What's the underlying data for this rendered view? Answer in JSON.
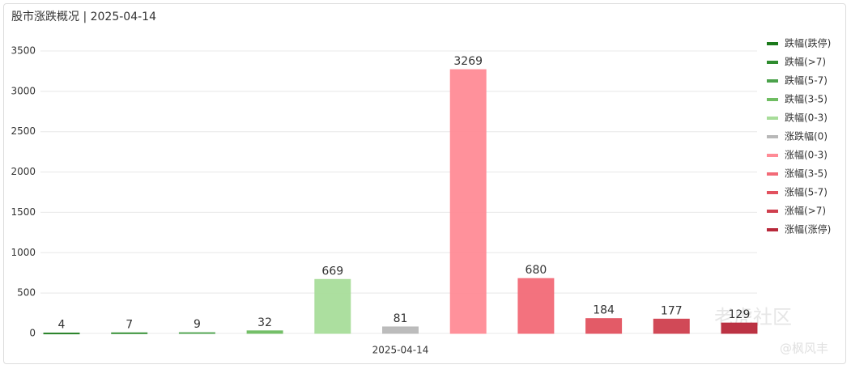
{
  "chart_data": {
    "type": "bar",
    "title": "股市涨跌概况 | 2025-04-14",
    "categories": [
      "2025-04-14"
    ],
    "series": [
      {
        "name": "跌幅(跌停)",
        "color": "#1b7a1b",
        "values": [
          4
        ]
      },
      {
        "name": "跌幅(>7)",
        "color": "#2f8c2f",
        "values": [
          7
        ]
      },
      {
        "name": "跌幅(5-7)",
        "color": "#4ba24b",
        "values": [
          9
        ]
      },
      {
        "name": "跌幅(3-5)",
        "color": "#6fbd62",
        "values": [
          32
        ]
      },
      {
        "name": "跌幅(0-3)",
        "color": "#a8dd9a",
        "values": [
          669
        ]
      },
      {
        "name": "涨跌幅(0)",
        "color": "#b8b8b8",
        "values": [
          81
        ]
      },
      {
        "name": "涨幅(0-3)",
        "color": "#ff8b96",
        "values": [
          3269
        ]
      },
      {
        "name": "涨幅(3-5)",
        "color": "#f26a77",
        "values": [
          680
        ]
      },
      {
        "name": "涨幅(5-7)",
        "color": "#e2525f",
        "values": [
          184
        ]
      },
      {
        "name": "涨幅(>7)",
        "color": "#cf3f4e",
        "values": [
          177
        ]
      },
      {
        "name": "涨幅(涨停)",
        "color": "#b8283a",
        "values": [
          129
        ]
      }
    ],
    "ylim": [
      0,
      3500
    ],
    "yticks": [
      0,
      500,
      1000,
      1500,
      2000,
      2500,
      3000,
      3500
    ],
    "grid": true,
    "legend": "right",
    "watermark": [
      "老虎社区",
      "@枫风丰"
    ]
  }
}
